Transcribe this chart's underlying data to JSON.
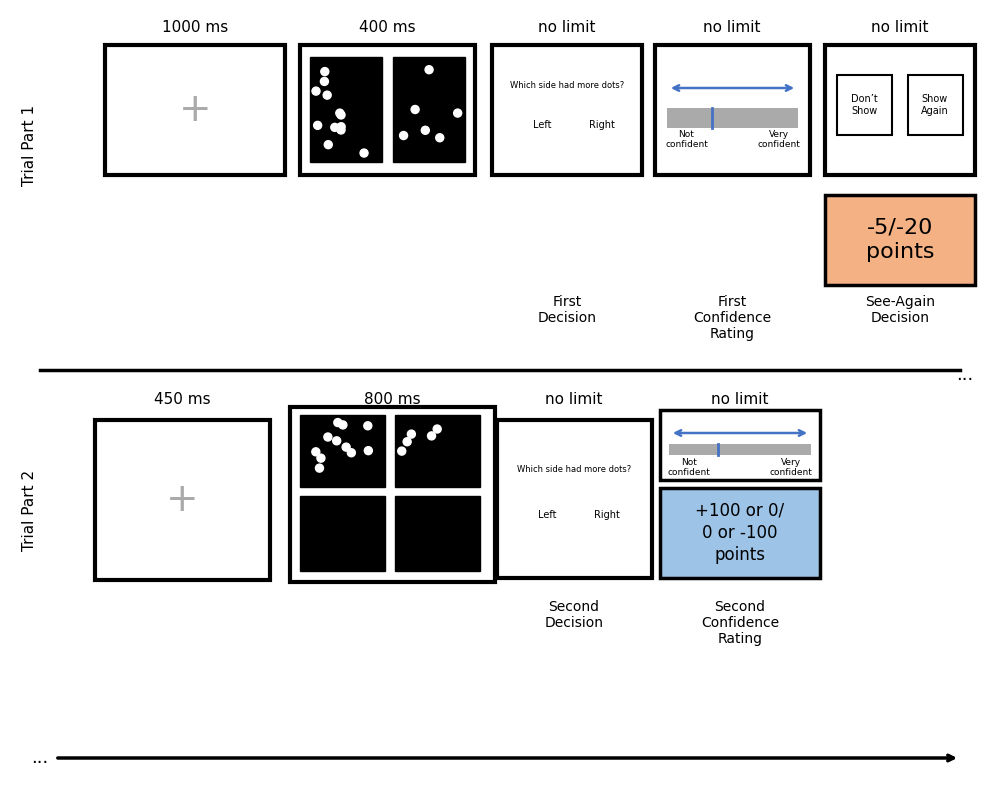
{
  "bg_color": "#ffffff",
  "arrow_color": "#4472c4",
  "slider_color": "#aaaaaa",
  "slider_marker_color": "#4472c4",
  "dot_color": "#ffffff",
  "orange_color": "#f4b183",
  "blue_color": "#9dc3e6",
  "text_color": "#000000",
  "gray_cross": "#aaaaaa",
  "part1_label": "Trial Part 1",
  "part2_label": "Trial Part 2",
  "time1_1": "1000 ms",
  "time1_2": "400 ms",
  "time1_3": "no limit",
  "time1_4": "no limit",
  "time1_5": "no limit",
  "time2_fix": "450 ms",
  "time2_stim": "800 ms",
  "time2_dec": "no limit",
  "time2_conf": "no limit",
  "first_decision": "First\nDecision",
  "first_conf": "First\nConfidence\nRating",
  "see_again": "See-Again\nDecision",
  "second_decision": "Second\nDecision",
  "second_conf": "Second\nConfidence\nRating",
  "penalty_text": "-5/-20\npoints",
  "reward_text": "+100 or 0/\n0 or -100\npoints",
  "which_side": "Which side had more dots?",
  "left_label": "Left",
  "right_label": "Right",
  "dont_show": "Don’t\nShow",
  "show_again": "Show\nAgain",
  "not_conf": "Not\nconfident",
  "very_conf": "Very\nconfident",
  "ellipsis": "..."
}
